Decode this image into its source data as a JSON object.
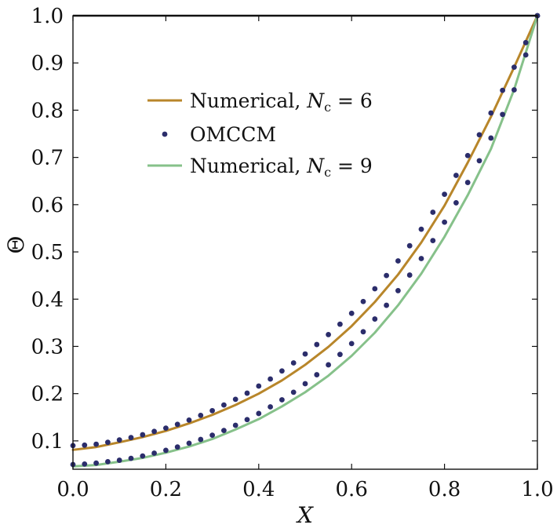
{
  "chart_data": {
    "type": "line",
    "title": "",
    "xlabel": "X",
    "ylabel": "Θ",
    "xlim": [
      0.0,
      1.0
    ],
    "ylim": [
      0.04,
      1.0
    ],
    "x_ticks": [
      "0.0",
      "0.2",
      "0.4",
      "0.6",
      "0.8",
      "1.0"
    ],
    "y_ticks": [
      "0.1",
      "0.2",
      "0.3",
      "0.4",
      "0.5",
      "0.6",
      "0.7",
      "0.8",
      "0.9",
      "1.0"
    ],
    "grid": false,
    "legend": {
      "placement": "upper-left",
      "entries": [
        {
          "name": "Numerical, ",
          "var": "N",
          "sub": "c",
          "rel": " = 6",
          "style": "line",
          "color": "#b8862a"
        },
        {
          "name": "OMCCM",
          "style": "dots",
          "color": "#2b2d6b"
        },
        {
          "name": "Numerical, ",
          "var": "N",
          "sub": "c",
          "rel": " = 9",
          "style": "line",
          "color": "#86c18a"
        }
      ]
    },
    "series": [
      {
        "label": "Numerical, Nc = 6",
        "style": "line",
        "color": "#b8862a",
        "x": [
          0.0,
          0.05,
          0.1,
          0.15,
          0.2,
          0.25,
          0.3,
          0.35,
          0.4,
          0.45,
          0.5,
          0.55,
          0.6,
          0.65,
          0.7,
          0.75,
          0.8,
          0.85,
          0.9,
          0.95,
          1.0
        ],
        "y": [
          0.081,
          0.087,
          0.097,
          0.108,
          0.121,
          0.137,
          0.155,
          0.176,
          0.2,
          0.228,
          0.261,
          0.299,
          0.343,
          0.394,
          0.452,
          0.52,
          0.598,
          0.689,
          0.786,
          0.891,
          1.0
        ]
      },
      {
        "label": "OMCCM",
        "style": "dots",
        "color": "#2b2d6b",
        "x": [
          0.0,
          0.025,
          0.05,
          0.075,
          0.1,
          0.125,
          0.15,
          0.175,
          0.2,
          0.225,
          0.25,
          0.275,
          0.3,
          0.325,
          0.35,
          0.375,
          0.4,
          0.425,
          0.45,
          0.475,
          0.5,
          0.525,
          0.55,
          0.575,
          0.6,
          0.625,
          0.65,
          0.675,
          0.7,
          0.725,
          0.75,
          0.775,
          0.8,
          0.825,
          0.85,
          0.875,
          0.9,
          0.925,
          0.95,
          0.975,
          1.0
        ],
        "y": [
          0.09,
          0.091,
          0.093,
          0.097,
          0.102,
          0.107,
          0.113,
          0.12,
          0.127,
          0.135,
          0.144,
          0.154,
          0.164,
          0.176,
          0.188,
          0.201,
          0.216,
          0.231,
          0.248,
          0.265,
          0.284,
          0.304,
          0.325,
          0.347,
          0.37,
          0.395,
          0.422,
          0.45,
          0.481,
          0.513,
          0.548,
          0.584,
          0.622,
          0.662,
          0.704,
          0.748,
          0.794,
          0.842,
          0.891,
          0.943,
          1.0
        ]
      },
      {
        "label": "OMCCM",
        "style": "dots",
        "color": "#2b2d6b",
        "x": [
          0.0,
          0.025,
          0.05,
          0.075,
          0.1,
          0.125,
          0.15,
          0.175,
          0.2,
          0.225,
          0.25,
          0.275,
          0.3,
          0.325,
          0.35,
          0.375,
          0.4,
          0.425,
          0.45,
          0.475,
          0.5,
          0.525,
          0.55,
          0.575,
          0.6,
          0.625,
          0.65,
          0.675,
          0.7,
          0.725,
          0.75,
          0.775,
          0.8,
          0.825,
          0.85,
          0.875,
          0.9,
          0.925,
          0.95,
          0.975,
          1.0
        ],
        "y": [
          0.05,
          0.051,
          0.053,
          0.056,
          0.059,
          0.063,
          0.068,
          0.074,
          0.08,
          0.087,
          0.095,
          0.103,
          0.112,
          0.122,
          0.133,
          0.145,
          0.158,
          0.172,
          0.187,
          0.203,
          0.221,
          0.24,
          0.261,
          0.283,
          0.306,
          0.331,
          0.358,
          0.387,
          0.418,
          0.451,
          0.486,
          0.524,
          0.563,
          0.604,
          0.647,
          0.693,
          0.741,
          0.791,
          0.843,
          0.917,
          1.0
        ]
      },
      {
        "label": "Numerical, Nc = 9",
        "style": "line",
        "color": "#86c18a",
        "x": [
          0.0,
          0.05,
          0.1,
          0.15,
          0.2,
          0.25,
          0.3,
          0.35,
          0.4,
          0.45,
          0.5,
          0.55,
          0.6,
          0.65,
          0.7,
          0.75,
          0.8,
          0.85,
          0.9,
          0.95,
          1.0
        ],
        "y": [
          0.046,
          0.049,
          0.056,
          0.064,
          0.075,
          0.088,
          0.104,
          0.124,
          0.146,
          0.173,
          0.203,
          0.238,
          0.28,
          0.329,
          0.387,
          0.454,
          0.532,
          0.62,
          0.718,
          0.844,
          1.0
        ]
      }
    ]
  }
}
